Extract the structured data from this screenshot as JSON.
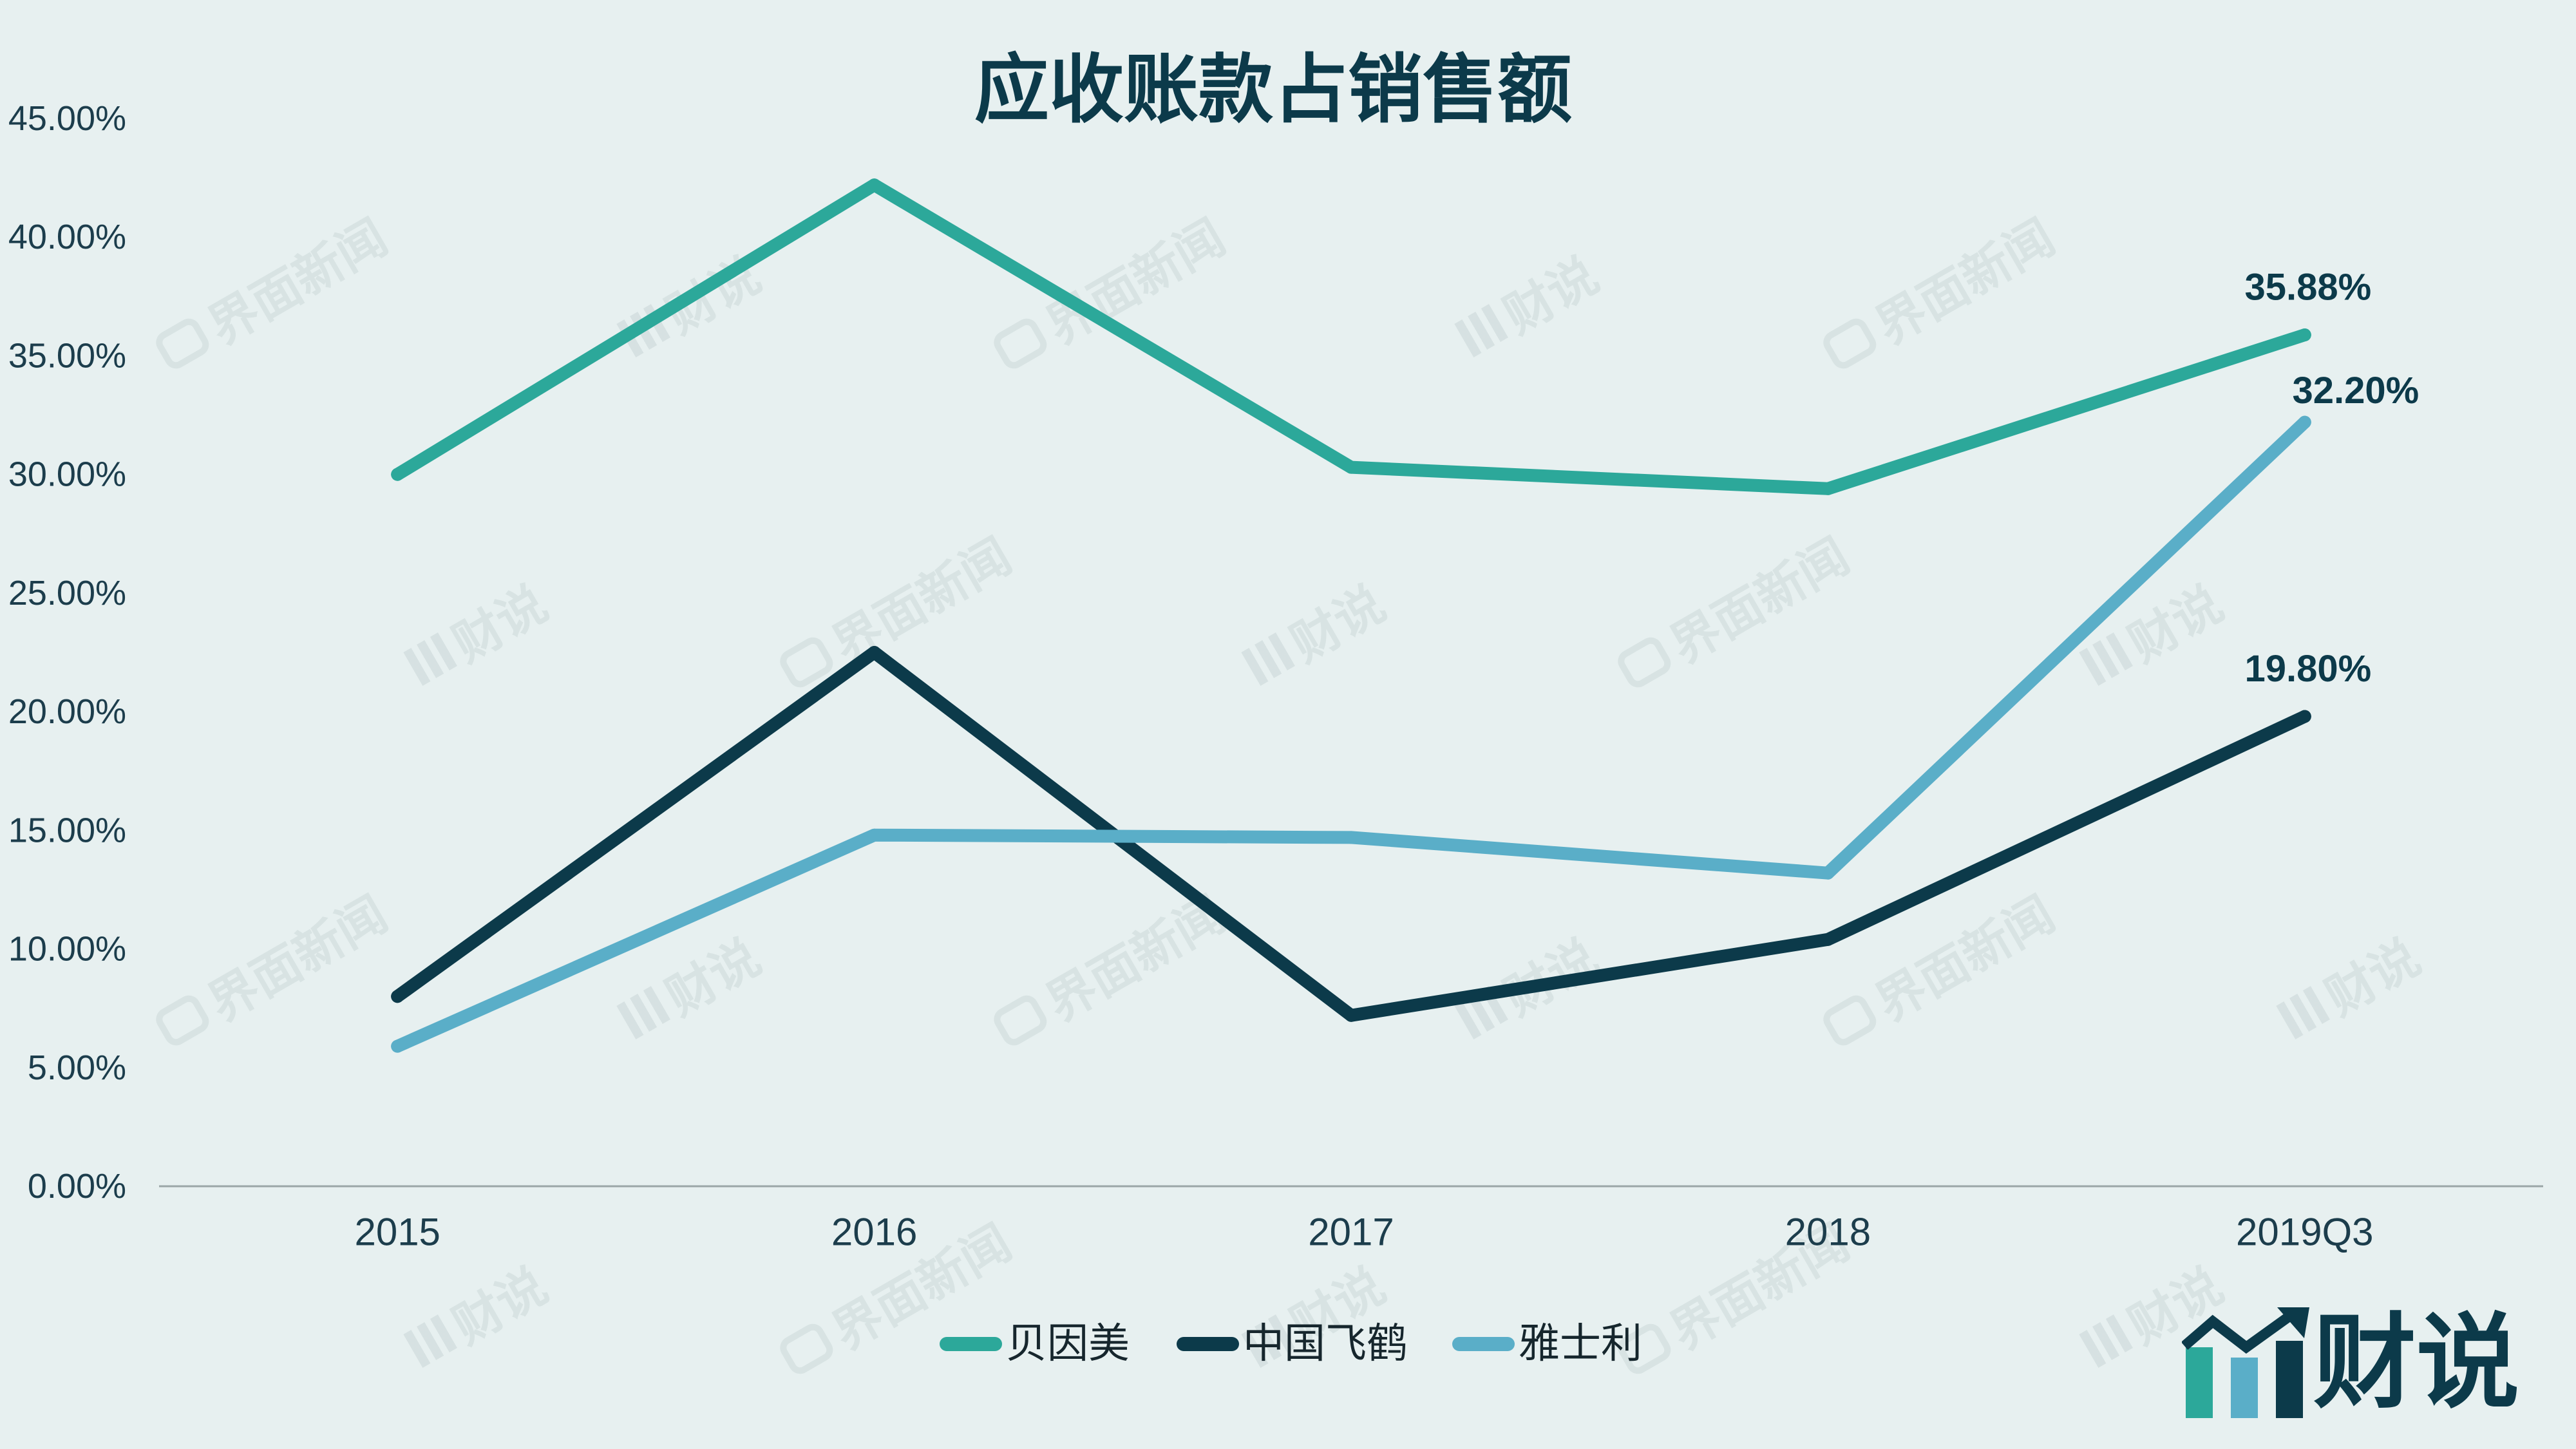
{
  "chart_data": {
    "type": "line",
    "title": "应收账款占销售额",
    "categories": [
      "2015",
      "2016",
      "2017",
      "2018",
      "2019Q3"
    ],
    "ylim": [
      0,
      45
    ],
    "y_ticks": [
      0,
      5,
      10,
      15,
      20,
      25,
      30,
      35,
      40,
      45
    ],
    "y_tick_labels": [
      "0.00%",
      "5.00%",
      "10.00%",
      "15.00%",
      "20.00%",
      "25.00%",
      "30.00%",
      "35.00%",
      "40.00%",
      "45.00%"
    ],
    "grid": false,
    "legend_position": "bottom",
    "series": [
      {
        "name": "贝因美",
        "color": "#2ca89a",
        "values": [
          30.0,
          42.2,
          30.3,
          29.4,
          35.88
        ],
        "point_labels": [
          null,
          null,
          null,
          null,
          "35.88%"
        ]
      },
      {
        "name": "中国飞鹤",
        "color": "#0c3a4a",
        "values": [
          8.0,
          22.5,
          7.2,
          10.4,
          19.8
        ],
        "point_labels": [
          null,
          null,
          null,
          null,
          "19.80%"
        ]
      },
      {
        "name": "雅士利",
        "color": "#5aaec8",
        "values": [
          5.9,
          14.8,
          14.7,
          13.2,
          32.2
        ],
        "point_labels": [
          null,
          null,
          null,
          null,
          "32.20%"
        ]
      }
    ]
  },
  "colors": {
    "background": "#e7f0f0",
    "title": "#0c3a4a",
    "tick_text": "#1c3d4c",
    "axis": "#9ba6a7"
  },
  "watermark": {
    "texts": [
      "界面新闻",
      "财说"
    ]
  },
  "logo": {
    "text": "财说",
    "icon": "bar-chart-arrow-icon"
  }
}
